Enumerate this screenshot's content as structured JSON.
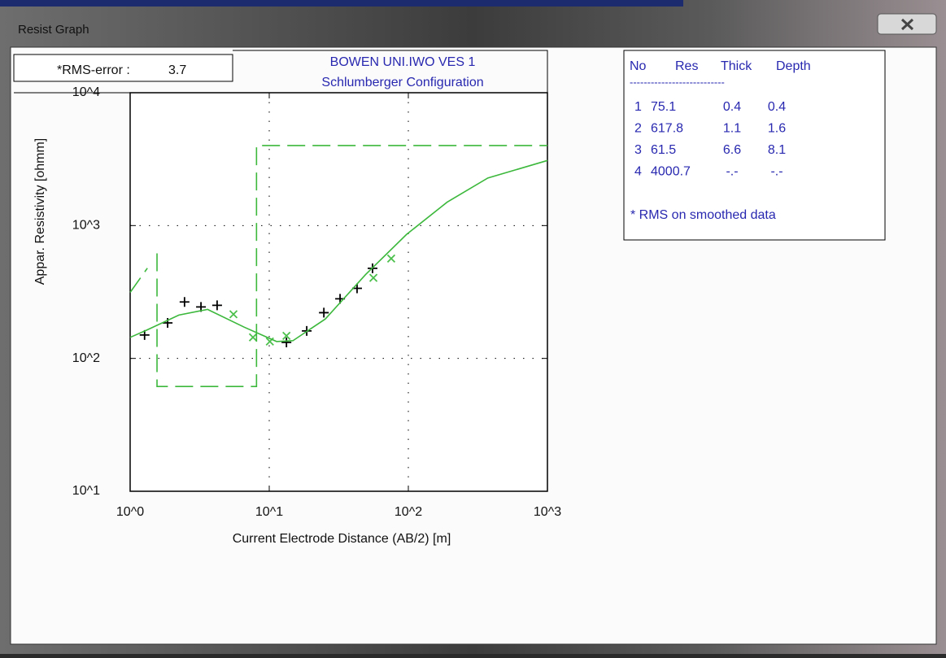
{
  "window": {
    "title": "Resist Graph"
  },
  "rms_box": {
    "label": "*RMS-error :",
    "value": 3.7
  },
  "chart_data": {
    "type": "line",
    "title": [
      "BOWEN UNI.IWO VES 1",
      "Schlumberger Configuration"
    ],
    "x_label": "Current Electrode Distance (AB/2) [m]",
    "y_label": "Appar. Resistivity [ohmm]",
    "xscale": "log",
    "yscale": "log",
    "grid": true,
    "xlim": [
      1,
      1000
    ],
    "ylim": [
      10,
      10000
    ],
    "xticks": [
      {
        "value": 1,
        "label": "10^0"
      },
      {
        "value": 10,
        "label": "10^1"
      },
      {
        "value": 100,
        "label": "10^2"
      },
      {
        "value": 1000,
        "label": "10^3"
      }
    ],
    "yticks": [
      {
        "value": 10,
        "label": "10^1"
      },
      {
        "value": 100,
        "label": "10^2"
      },
      {
        "value": 1000,
        "label": "10^3"
      },
      {
        "value": 10000,
        "label": "10^4"
      }
    ],
    "series": [
      {
        "mode": "markers",
        "marker": "+",
        "color": "#000000",
        "x": [
          1.27,
          1.86,
          2.46,
          3.23,
          4.22,
          13.3,
          18.6,
          24.7,
          32.3,
          42.8,
          55.3
        ],
        "values": [
          150,
          185,
          266,
          244,
          251,
          132,
          161,
          221,
          281,
          337,
          477
        ]
      },
      {
        "mode": "markers",
        "marker": "x",
        "color": "#4cc04c",
        "x": [
          5.53,
          7.64,
          10.1,
          13.3,
          56.1,
          75.3
        ],
        "values": [
          215,
          144,
          134,
          148,
          404,
          565
        ]
      },
      {
        "mode": "lines",
        "dash": true,
        "color": "#3cb83c",
        "x": [
          1,
          1.33,
          1.45,
          1.56,
          1.56,
          8.1,
          8.1,
          1000
        ],
        "values": [
          314,
          478,
          null,
          617.8,
          61.5,
          61.5,
          4000.7,
          4000.7
        ]
      },
      {
        "mode": "lines",
        "dash": false,
        "color": "#3cb83c",
        "x": [
          1,
          1.31,
          2.24,
          3.6,
          6.6,
          11.3,
          14.8,
          25.3,
          49.2,
          97,
          190,
          373,
          1000
        ],
        "values": [
          144,
          163,
          212,
          234,
          172,
          134,
          136,
          198,
          427,
          857,
          1500,
          2280,
          3090
        ]
      }
    ]
  },
  "layer_table": {
    "header": [
      "No",
      "Res",
      "Thick",
      "Depth"
    ],
    "rule": "---------------------------",
    "rows": [
      [
        "1",
        "75.1",
        "0.4",
        "0.4"
      ],
      [
        "2",
        "617.8",
        "1.1",
        "1.6"
      ],
      [
        "3",
        "61.5",
        "6.6",
        "8.1"
      ],
      [
        "4",
        "4000.7",
        "-.-",
        "-.-"
      ]
    ],
    "note": "* RMS on smoothed data"
  }
}
